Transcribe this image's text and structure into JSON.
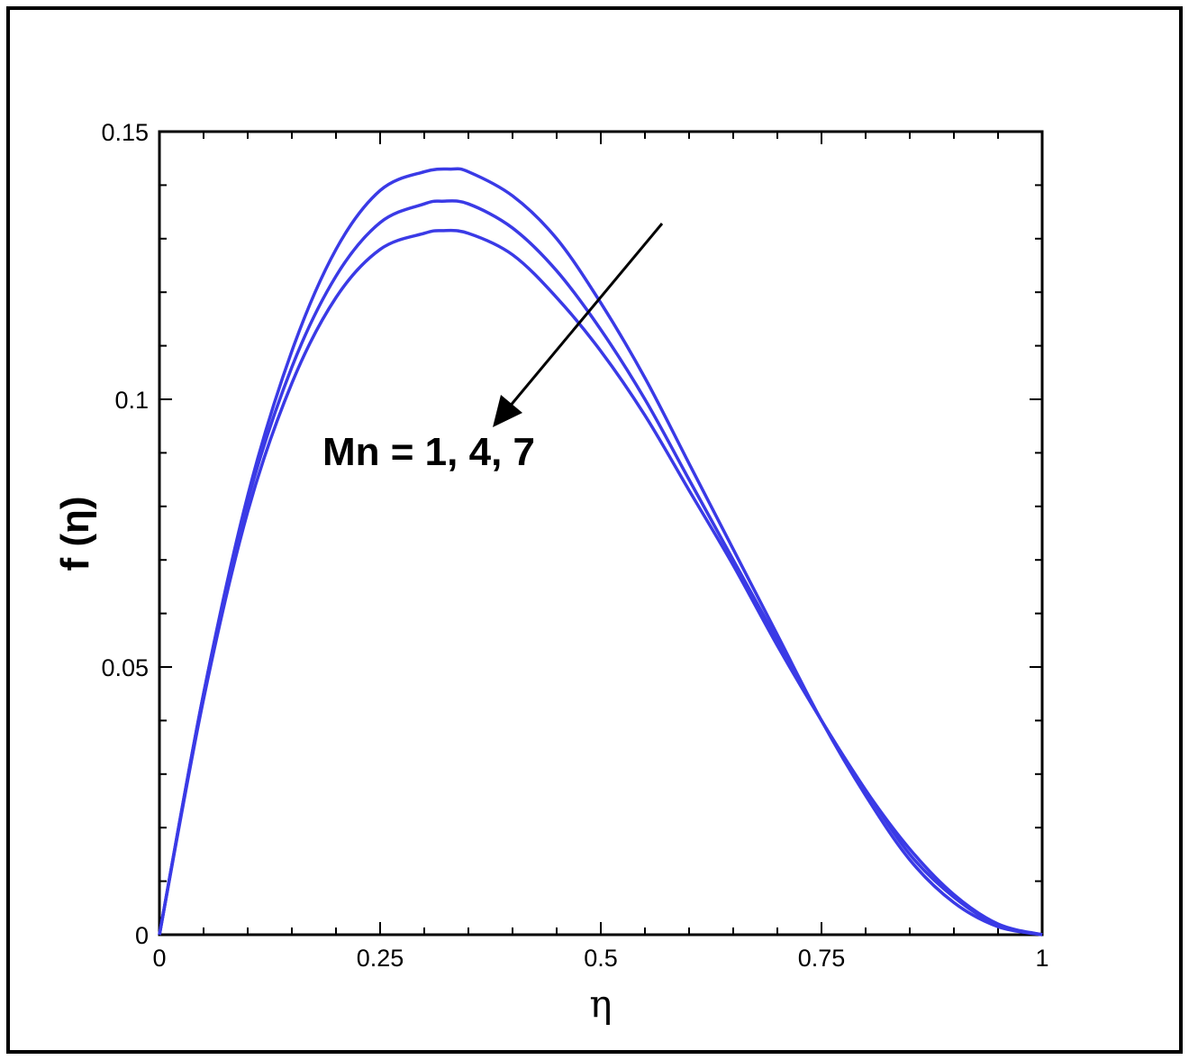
{
  "chart_data": {
    "type": "line",
    "xlabel": "η",
    "ylabel": "f (η)",
    "xlim": [
      0,
      1
    ],
    "ylim": [
      0,
      0.15
    ],
    "grid": false,
    "legend": "none",
    "x_ticks": [
      "0",
      "0.25",
      "0.5",
      "0.75",
      "1"
    ],
    "y_ticks": [
      "0",
      "0.05",
      "0.1",
      "0.15"
    ],
    "annotation": "Mn = 1, 4, 7",
    "line_color": "#3a3ae6",
    "series": [
      {
        "x": [
          0,
          0.05,
          0.1,
          0.15,
          0.2,
          0.25,
          0.3,
          0.33,
          0.35,
          0.4,
          0.45,
          0.5,
          0.55,
          0.6,
          0.65,
          0.7,
          0.75,
          0.8,
          0.85,
          0.9,
          0.95,
          1.0
        ],
        "values": [
          0,
          0.045,
          0.082,
          0.109,
          0.128,
          0.139,
          0.1425,
          0.143,
          0.1425,
          0.138,
          0.13,
          0.118,
          0.104,
          0.088,
          0.072,
          0.056,
          0.04,
          0.026,
          0.014,
          0.006,
          0.0015,
          0
        ]
      },
      {
        "x": [
          0,
          0.05,
          0.1,
          0.15,
          0.2,
          0.25,
          0.3,
          0.32,
          0.35,
          0.4,
          0.45,
          0.5,
          0.55,
          0.6,
          0.65,
          0.7,
          0.75,
          0.8,
          0.85,
          0.9,
          0.95,
          1.0
        ],
        "values": [
          0,
          0.045,
          0.081,
          0.106,
          0.123,
          0.133,
          0.1365,
          0.137,
          0.1365,
          0.132,
          0.124,
          0.113,
          0.1,
          0.085,
          0.07,
          0.055,
          0.04,
          0.027,
          0.015,
          0.007,
          0.0018,
          0
        ]
      },
      {
        "x": [
          0,
          0.05,
          0.1,
          0.15,
          0.2,
          0.25,
          0.3,
          0.32,
          0.35,
          0.4,
          0.45,
          0.5,
          0.55,
          0.6,
          0.65,
          0.7,
          0.75,
          0.8,
          0.85,
          0.9,
          0.95,
          1.0
        ],
        "values": [
          0,
          0.044,
          0.079,
          0.103,
          0.119,
          0.128,
          0.131,
          0.1315,
          0.131,
          0.127,
          0.119,
          0.109,
          0.097,
          0.083,
          0.069,
          0.054,
          0.04,
          0.027,
          0.016,
          0.0075,
          0.002,
          0
        ]
      }
    ]
  }
}
